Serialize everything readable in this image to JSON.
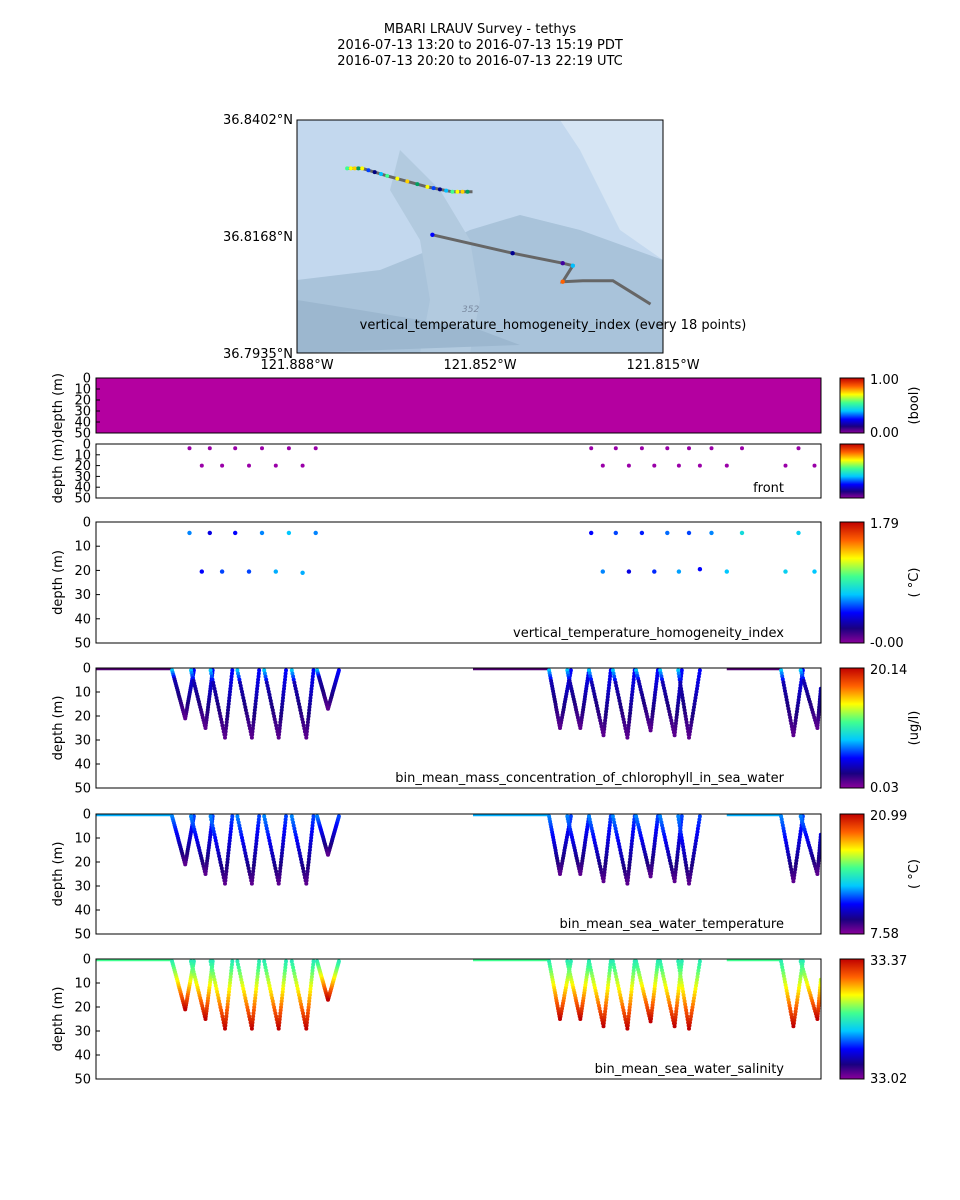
{
  "title": {
    "line1": "MBARI LRAUV Survey - tethys",
    "line2": "2016-07-13 13:20  to  2016-07-13 15:19 PDT",
    "line3": "2016-07-13 20:20  to  2016-07-13 22:19 UTC"
  },
  "map": {
    "lat_labels": [
      "36.8402°N",
      "36.8168°N",
      "36.7935°N"
    ],
    "lon_labels": [
      "121.888°W",
      "121.852°W",
      "121.815°W"
    ],
    "caption": "vertical_temperature_homogeneity_index (every 18 points)",
    "contour_label": "352",
    "lat_range": [
      36.7935,
      36.8402
    ],
    "lon_range": [
      -121.888,
      -121.815
    ],
    "track_color": "#666666",
    "land_color": "#c9dcf0",
    "sea_color": "#a9c4dc"
  },
  "panels": [
    {
      "label": "",
      "ylabel": "depth (m)",
      "ylim": [
        0,
        50
      ],
      "yticks": [
        0,
        10,
        20,
        30,
        40,
        50
      ],
      "fill": "#b400a0",
      "colorbar": {
        "max": "1.00",
        "min": "0.00",
        "unit": "(bool)"
      }
    },
    {
      "label": "front",
      "ylabel": "depth (m)",
      "ylim": [
        0,
        50
      ],
      "yticks": [
        0,
        10,
        20,
        30,
        40,
        50
      ],
      "colorbar": {
        "max": "",
        "min": "",
        "unit": ""
      }
    },
    {
      "label": "vertical_temperature_homogeneity_index",
      "ylabel": "depth (m)",
      "ylim": [
        0,
        50
      ],
      "yticks": [
        0,
        10,
        20,
        30,
        40,
        50
      ],
      "colorbar": {
        "max": "1.79",
        "min": "-0.00",
        "unit": "( °C)"
      }
    },
    {
      "label": "bin_mean_mass_concentration_of_chlorophyll_in_sea_water",
      "ylabel": "depth (m)",
      "ylim": [
        0,
        50
      ],
      "yticks": [
        0,
        10,
        20,
        30,
        40,
        50
      ],
      "colorbar": {
        "max": "20.14",
        "min": "0.03",
        "unit": "(ug/l)"
      }
    },
    {
      "label": "bin_mean_sea_water_temperature",
      "ylabel": "depth (m)",
      "ylim": [
        0,
        50
      ],
      "yticks": [
        0,
        10,
        20,
        30,
        40,
        50
      ],
      "colorbar": {
        "max": "20.99",
        "min": "7.58",
        "unit": "( °C)"
      }
    },
    {
      "label": "bin_mean_sea_water_salinity",
      "ylabel": "depth (m)",
      "ylim": [
        0,
        50
      ],
      "yticks": [
        0,
        10,
        20,
        30,
        40,
        50
      ],
      "colorbar": {
        "max": "33.37",
        "min": "33.02",
        "unit": ""
      }
    }
  ],
  "chart_data": {
    "type": "scatter",
    "x_range": [
      0,
      1
    ],
    "ylim": [
      0,
      50
    ],
    "front_points": [
      {
        "x": 0.129,
        "y": 4
      },
      {
        "x": 0.146,
        "y": 20
      },
      {
        "x": 0.157,
        "y": 4
      },
      {
        "x": 0.174,
        "y": 20
      },
      {
        "x": 0.192,
        "y": 4
      },
      {
        "x": 0.211,
        "y": 20
      },
      {
        "x": 0.229,
        "y": 4
      },
      {
        "x": 0.248,
        "y": 20
      },
      {
        "x": 0.266,
        "y": 4
      },
      {
        "x": 0.285,
        "y": 20
      },
      {
        "x": 0.303,
        "y": 4
      },
      {
        "x": 0.683,
        "y": 4
      },
      {
        "x": 0.699,
        "y": 20
      },
      {
        "x": 0.717,
        "y": 4
      },
      {
        "x": 0.735,
        "y": 20
      },
      {
        "x": 0.753,
        "y": 4
      },
      {
        "x": 0.77,
        "y": 20
      },
      {
        "x": 0.788,
        "y": 4
      },
      {
        "x": 0.804,
        "y": 20
      },
      {
        "x": 0.818,
        "y": 4
      },
      {
        "x": 0.833,
        "y": 20
      },
      {
        "x": 0.849,
        "y": 4
      },
      {
        "x": 0.87,
        "y": 20
      },
      {
        "x": 0.891,
        "y": 4
      },
      {
        "x": 0.951,
        "y": 20
      },
      {
        "x": 0.969,
        "y": 4
      },
      {
        "x": 0.991,
        "y": 20
      }
    ],
    "vthi_points": [
      {
        "x": 0.129,
        "y": 4.5,
        "v": 0.35
      },
      {
        "x": 0.146,
        "y": 20.5,
        "v": 0.25
      },
      {
        "x": 0.157,
        "y": 4.5,
        "v": 0.22
      },
      {
        "x": 0.174,
        "y": 20.5,
        "v": 0.3
      },
      {
        "x": 0.192,
        "y": 4.5,
        "v": 0.25
      },
      {
        "x": 0.211,
        "y": 20.5,
        "v": 0.3
      },
      {
        "x": 0.229,
        "y": 4.5,
        "v": 0.35
      },
      {
        "x": 0.248,
        "y": 20.5,
        "v": 0.38
      },
      {
        "x": 0.266,
        "y": 4.5,
        "v": 0.4
      },
      {
        "x": 0.285,
        "y": 21,
        "v": 0.38
      },
      {
        "x": 0.303,
        "y": 4.5,
        "v": 0.35
      },
      {
        "x": 0.683,
        "y": 4.5,
        "v": 0.25
      },
      {
        "x": 0.699,
        "y": 20.5,
        "v": 0.35
      },
      {
        "x": 0.717,
        "y": 4.5,
        "v": 0.3
      },
      {
        "x": 0.735,
        "y": 20.5,
        "v": 0.22
      },
      {
        "x": 0.753,
        "y": 4.5,
        "v": 0.27
      },
      {
        "x": 0.77,
        "y": 20.5,
        "v": 0.28
      },
      {
        "x": 0.788,
        "y": 4.5,
        "v": 0.33
      },
      {
        "x": 0.804,
        "y": 20.5,
        "v": 0.37
      },
      {
        "x": 0.818,
        "y": 4.5,
        "v": 0.3
      },
      {
        "x": 0.833,
        "y": 19.5,
        "v": 0.25
      },
      {
        "x": 0.849,
        "y": 4.5,
        "v": 0.35
      },
      {
        "x": 0.87,
        "y": 20.5,
        "v": 0.4
      },
      {
        "x": 0.891,
        "y": 4.5,
        "v": 0.45
      },
      {
        "x": 0.951,
        "y": 20.5,
        "v": 0.42
      },
      {
        "x": 0.969,
        "y": 4.5,
        "v": 0.42
      },
      {
        "x": 0.991,
        "y": 20.5,
        "v": 0.4
      }
    ],
    "track_segments": [
      {
        "x": [
          0,
          0.105
        ],
        "profiles": [
          {
            "top": 0.105,
            "bottom": 0.123,
            "depth": 21
          },
          {
            "top": 0.131,
            "bottom": 0.151,
            "depth": 25
          },
          {
            "top": 0.158,
            "bottom": 0.178,
            "depth": 29
          },
          {
            "top": 0.195,
            "bottom": 0.215,
            "depth": 29
          },
          {
            "top": 0.232,
            "bottom": 0.252,
            "depth": 29
          },
          {
            "top": 0.27,
            "bottom": 0.29,
            "depth": 29
          },
          {
            "top": 0.305,
            "bottom": 0.32,
            "depth": 17
          }
        ]
      },
      {
        "x": [
          0.52,
          0.625
        ],
        "profiles": [
          {
            "top": 0.625,
            "bottom": 0.64,
            "depth": 25
          },
          {
            "top": 0.65,
            "bottom": 0.668,
            "depth": 25
          },
          {
            "top": 0.68,
            "bottom": 0.7,
            "depth": 28
          },
          {
            "top": 0.713,
            "bottom": 0.733,
            "depth": 29
          },
          {
            "top": 0.745,
            "bottom": 0.765,
            "depth": 26
          },
          {
            "top": 0.778,
            "bottom": 0.798,
            "depth": 28
          },
          {
            "top": 0.803,
            "bottom": 0.818,
            "depth": 29
          }
        ]
      },
      {
        "x": [
          0.87,
          0.945
        ],
        "profiles": [
          {
            "top": 0.945,
            "bottom": 0.962,
            "depth": 28
          },
          {
            "top": 0.972,
            "bottom": 0.995,
            "depth": 25
          }
        ]
      }
    ],
    "map_track": [
      {
        "lon": -121.878,
        "lat": 36.8305
      },
      {
        "lon": -121.875,
        "lat": 36.8305
      },
      {
        "lon": -121.87,
        "lat": 36.829
      },
      {
        "lon": -121.862,
        "lat": 36.8268
      },
      {
        "lon": -121.857,
        "lat": 36.8258
      },
      {
        "lon": -121.853,
        "lat": 36.8258
      }
    ],
    "map_track2": [
      {
        "lon": -121.861,
        "lat": 36.8172
      },
      {
        "lon": -121.845,
        "lat": 36.8135
      },
      {
        "lon": -121.835,
        "lat": 36.8115
      },
      {
        "lon": -121.833,
        "lat": 36.811
      },
      {
        "lon": -121.835,
        "lat": 36.8078
      },
      {
        "lon": -121.831,
        "lat": 36.808
      },
      {
        "lon": -121.825,
        "lat": 36.808
      },
      {
        "lon": -121.8175,
        "lat": 36.8033
      }
    ]
  }
}
